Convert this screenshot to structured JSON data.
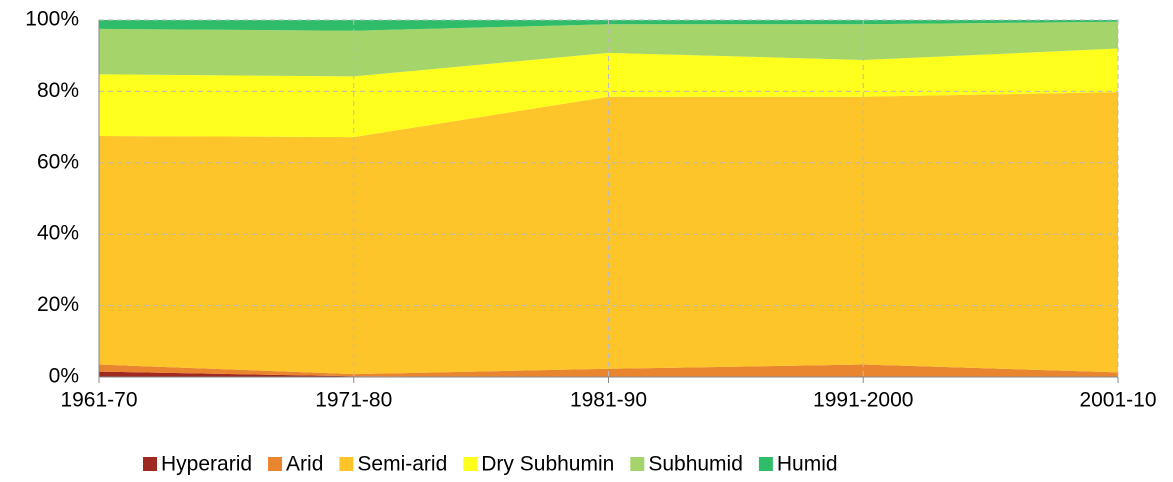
{
  "chart_data": {
    "type": "stacked-area",
    "categories": [
      "1961-70",
      "1971-80",
      "1981-90",
      "1991-2000",
      "2001-10"
    ],
    "series": [
      {
        "name": "Hyperarid",
        "color": "#a0291f",
        "values": [
          1.5,
          0.2,
          0,
          0,
          0
        ]
      },
      {
        "name": "Arid",
        "color": "#e9852f",
        "values": [
          2,
          0.6,
          2.3,
          3.5,
          1.3
        ]
      },
      {
        "name": "Semi-arid",
        "color": "#fdc52a",
        "values": [
          64,
          66.4,
          76.2,
          75,
          78.5
        ]
      },
      {
        "name": "Dry Subhumin",
        "color": "#ffff1e",
        "values": [
          17.3,
          17,
          12.3,
          10.3,
          12.2
        ]
      },
      {
        "name": "Subhumid",
        "color": "#a5d56a",
        "values": [
          12.7,
          12.8,
          8,
          10,
          7.5
        ]
      },
      {
        "name": "Humid",
        "color": "#2fbd6a",
        "values": [
          2.5,
          3,
          1.2,
          1.2,
          0.5
        ]
      }
    ],
    "ylim": [
      0,
      100
    ],
    "yticks": [
      {
        "value": 0,
        "label": "0%"
      },
      {
        "value": 20,
        "label": "20%"
      },
      {
        "value": 40,
        "label": "40%"
      },
      {
        "value": 60,
        "label": "60%"
      },
      {
        "value": 80,
        "label": "80%"
      },
      {
        "value": 100,
        "label": "100%"
      }
    ],
    "grid": true,
    "legend": "bottom"
  }
}
